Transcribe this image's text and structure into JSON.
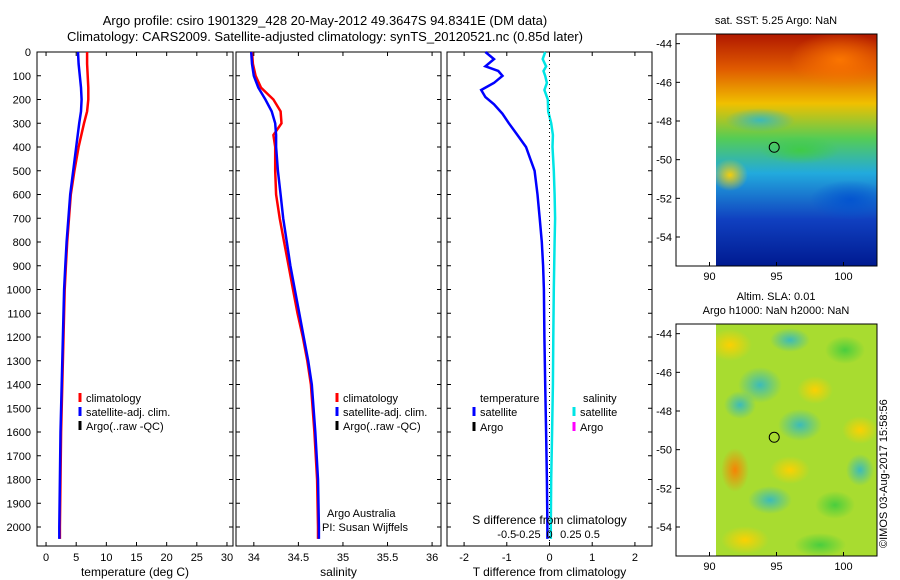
{
  "titles": {
    "line1": "Argo profile: csiro 1901329_428 20-May-2012 49.3647S 94.8341E (DM data)",
    "line2": "Climatology: CARS2009. Satellite-adjusted climatology: synTS_20120521.nc (0.85d later)"
  },
  "stamp": "©IMOS 03-Aug-2017 15:58:56",
  "colors": {
    "climatology": "#ff0000",
    "satellite": "#0000ff",
    "argo_t": "#000000",
    "sat_s": "#00e5e5",
    "argo_s": "#ff00ff"
  },
  "depth_ticks": [
    0,
    100,
    200,
    300,
    400,
    500,
    600,
    700,
    800,
    900,
    1000,
    1100,
    1200,
    1300,
    1400,
    1500,
    1600,
    1700,
    1800,
    1900,
    2000
  ],
  "chart_data": [
    {
      "type": "line",
      "xlabel": "temperature (deg C)",
      "xlim": [
        -1.5,
        31
      ],
      "ylim": [
        2080,
        0
      ],
      "xticks": [
        0,
        5,
        10,
        15,
        20,
        25,
        30
      ],
      "legend": [
        "climatology",
        "satellite-adj. clim.",
        "Argo(..raw -QC)"
      ],
      "series": [
        {
          "name": "climatology",
          "y": [
            0,
            50,
            100,
            150,
            200,
            250,
            300,
            400,
            500,
            600,
            700,
            800,
            900,
            1000,
            1200,
            1400,
            1600,
            1800,
            2000,
            2050
          ],
          "x": [
            6.8,
            6.8,
            6.9,
            7.0,
            7.0,
            6.8,
            6.3,
            5.4,
            4.7,
            4.1,
            3.8,
            3.5,
            3.3,
            3.1,
            2.9,
            2.7,
            2.5,
            2.4,
            2.3,
            2.3
          ]
        },
        {
          "name": "satellite-adj. clim.",
          "y": [
            0,
            50,
            100,
            150,
            200,
            250,
            300,
            400,
            500,
            600,
            700,
            800,
            900,
            1000,
            1200,
            1400,
            1600,
            1800,
            2000,
            2050
          ],
          "x": [
            5.3,
            5.4,
            5.6,
            5.8,
            5.9,
            5.8,
            5.5,
            5.0,
            4.5,
            4.0,
            3.7,
            3.4,
            3.2,
            3.0,
            2.8,
            2.6,
            2.4,
            2.3,
            2.2,
            2.2
          ]
        }
      ]
    },
    {
      "type": "line",
      "xlabel": "salinity",
      "xlim": [
        33.8,
        36.1
      ],
      "ylim": [
        2080,
        0
      ],
      "xticks": [
        34,
        34.5,
        35,
        35.5,
        36
      ],
      "xticklabels": [
        "34",
        "34.5",
        "35",
        "35.5",
        "36"
      ],
      "legend": [
        "climatology",
        "satellite-adj. clim.",
        "Argo(..raw -QC)"
      ],
      "annotations": [
        "Argo Australia",
        "PI: Susan Wijffels"
      ],
      "series": [
        {
          "name": "climatology",
          "y": [
            0,
            50,
            100,
            150,
            200,
            250,
            300,
            350,
            400,
            500,
            600,
            700,
            800,
            900,
            1000,
            1100,
            1200,
            1300,
            1400,
            1600,
            1800,
            2000,
            2050
          ],
          "x": [
            33.98,
            33.99,
            34.02,
            34.08,
            34.22,
            34.3,
            34.31,
            34.22,
            34.24,
            34.24,
            34.25,
            34.29,
            34.34,
            34.39,
            34.44,
            34.49,
            34.55,
            34.6,
            34.64,
            34.68,
            34.71,
            34.72,
            34.72
          ]
        },
        {
          "name": "satellite-adj. clim.",
          "y": [
            0,
            50,
            100,
            150,
            200,
            250,
            300,
            350,
            400,
            500,
            600,
            700,
            800,
            900,
            1000,
            1100,
            1200,
            1300,
            1400,
            1600,
            1800,
            2000,
            2050
          ],
          "x": [
            33.97,
            33.98,
            34.0,
            34.05,
            34.13,
            34.2,
            34.24,
            34.25,
            34.25,
            34.27,
            34.3,
            34.33,
            34.37,
            34.41,
            34.46,
            34.51,
            34.56,
            34.61,
            34.65,
            34.69,
            34.72,
            34.73,
            34.73
          ]
        }
      ]
    },
    {
      "type": "line",
      "xlabel": "T difference from climatology",
      "xlabel_top": "S difference from climatology",
      "xlim": [
        -2.4,
        2.4
      ],
      "ylim": [
        2080,
        0
      ],
      "xticks": [
        -2,
        -1,
        0,
        1,
        2
      ],
      "xticks_top": [
        -0.5,
        -0.25,
        0,
        0.25,
        0.5
      ],
      "xticks_top_labels": [
        "-0.5",
        "-0.25",
        "0",
        "0.25",
        "0.5"
      ],
      "legend_temperature": [
        "temperature",
        "satellite",
        "Argo"
      ],
      "legend_salinity": [
        "salinity",
        "satellite",
        "Argo"
      ],
      "series": [
        {
          "name": "satellite",
          "y": [
            0,
            30,
            60,
            80,
            100,
            130,
            160,
            190,
            220,
            260,
            300,
            350,
            400,
            450,
            500,
            600,
            700,
            800,
            900,
            1000,
            1200,
            1400,
            1600,
            1800,
            2000,
            2050
          ],
          "x": [
            -1.5,
            -1.3,
            -1.5,
            -1.2,
            -1.1,
            -1.3,
            -1.6,
            -1.5,
            -1.3,
            -1.1,
            -0.95,
            -0.75,
            -0.55,
            -0.45,
            -0.35,
            -0.28,
            -0.23,
            -0.18,
            -0.15,
            -0.13,
            -0.12,
            -0.1,
            -0.08,
            -0.06,
            -0.05,
            -0.05
          ]
        },
        {
          "name": "salinity satellite",
          "y": [
            0,
            30,
            60,
            80,
            100,
            130,
            160,
            200,
            250,
            300,
            350,
            400,
            500,
            600,
            700,
            800,
            900,
            1000,
            1200,
            1400,
            1600,
            1800,
            2000,
            2050
          ],
          "x": [
            -0.05,
            -0.08,
            -0.04,
            -0.07,
            -0.05,
            -0.03,
            -0.06,
            -0.02,
            -0.015,
            0.02,
            0.04,
            0.035,
            0.05,
            0.06,
            0.065,
            0.06,
            0.055,
            0.05,
            0.045,
            0.04,
            0.03,
            0.02,
            0.015,
            0.015
          ]
        }
      ]
    },
    {
      "type": "heatmap",
      "title": "sat. SST: 5.25 Argo: NaN",
      "xticks": [
        90,
        95,
        100
      ],
      "yticks": [
        -44,
        -46,
        -48,
        -50,
        -52,
        -54
      ],
      "xlim": [
        87.5,
        102.5
      ],
      "ylim": [
        -55.5,
        -43.5
      ],
      "marker": {
        "lon": 94.83,
        "lat": -49.36
      }
    },
    {
      "type": "heatmap",
      "title": "Altim. SLA: 0.01",
      "subtitle": "Argo h1000: NaN h2000: NaN",
      "xticks": [
        90,
        95,
        100
      ],
      "yticks": [
        -44,
        -46,
        -48,
        -50,
        -52,
        -54
      ],
      "xlim": [
        87.5,
        102.5
      ],
      "ylim": [
        -55.5,
        -43.5
      ],
      "marker": {
        "lon": 94.83,
        "lat": -49.36
      }
    }
  ]
}
